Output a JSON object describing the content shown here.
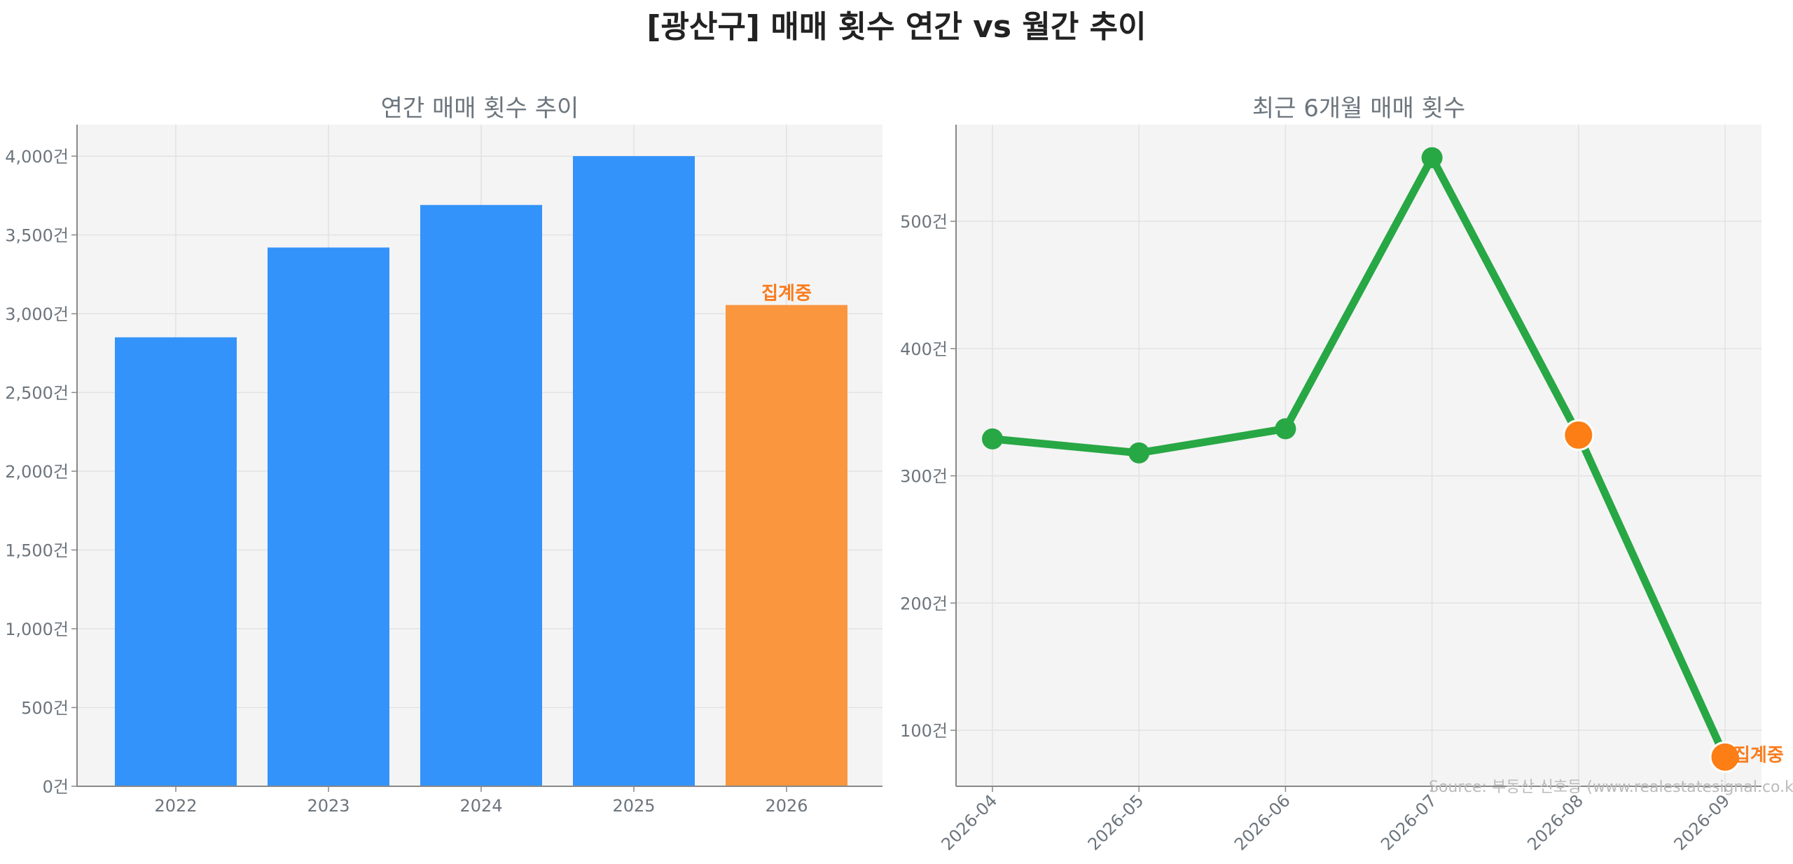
{
  "title": "[광산구] 매매 횟수 연간 vs 월간 추이",
  "source": "Source: 부동산 신호등 (www.realestatesignal.co.kr)",
  "colors": {
    "bar": "#3393fb",
    "bar_highlight": "#f9963e",
    "line": "#28a745",
    "marker_highlight": "#fd7e14",
    "annotation": "#f97c1e"
  },
  "chart_data": [
    {
      "type": "bar",
      "title": "연간 매매 횟수 추이",
      "categories": [
        "2022",
        "2023",
        "2024",
        "2025",
        "2026"
      ],
      "values": [
        2850,
        3420,
        3690,
        4000,
        3055
      ],
      "highlight_index": 4,
      "annotation": "집계중",
      "ylim": [
        0,
        4200
      ],
      "yticks": [
        0,
        500,
        1000,
        1500,
        2000,
        2500,
        3000,
        3500,
        4000
      ],
      "ytick_labels": [
        "0건",
        "500건",
        "1,000건",
        "1,500건",
        "2,000건",
        "2,500건",
        "3,000건",
        "3,500건",
        "4,000건"
      ],
      "grid": true
    },
    {
      "type": "line",
      "title": "최근 6개월 매매 횟수",
      "x": [
        "2026-04",
        "2026-05",
        "2026-06",
        "2026-07",
        "2026-08",
        "2026-09"
      ],
      "values": [
        329,
        318,
        337,
        550,
        332,
        79
      ],
      "highlight_indices": [
        4,
        5
      ],
      "annotation": "집계중",
      "ylim": [
        56,
        576
      ],
      "yticks": [
        100,
        200,
        300,
        400,
        500
      ],
      "ytick_labels": [
        "100건",
        "200건",
        "300건",
        "400건",
        "500건"
      ],
      "grid": true
    }
  ]
}
